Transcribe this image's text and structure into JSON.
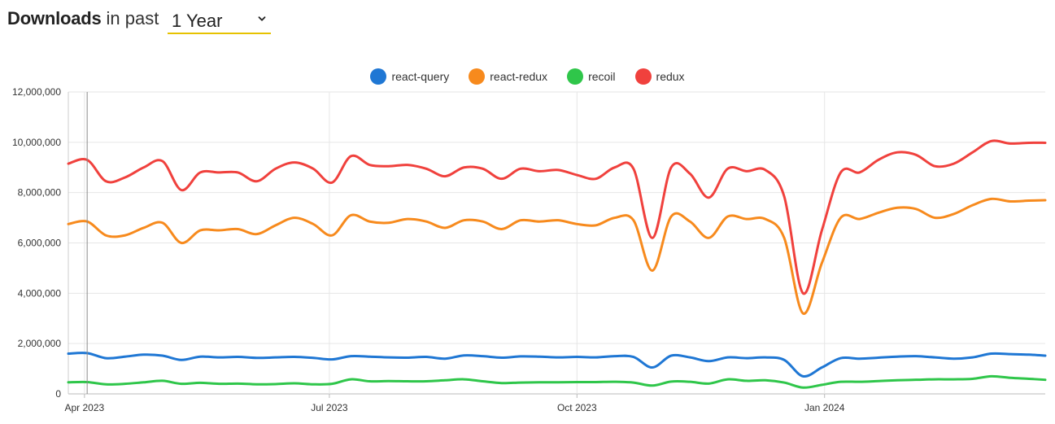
{
  "header": {
    "title": "Downloads",
    "subtitle": "in past",
    "period": "1 Year"
  },
  "chart_data": {
    "type": "line",
    "title": "",
    "xlabel": "",
    "ylabel": "",
    "ylim": [
      0,
      12000000
    ],
    "xlim": [
      "2023-03-26",
      "2024-03-23"
    ],
    "y_ticks": [
      0,
      2000000,
      4000000,
      6000000,
      8000000,
      10000000,
      12000000
    ],
    "y_tick_labels": [
      "0",
      "2,000,000",
      "4,000,000",
      "6,000,000",
      "8,000,000",
      "10,000,000",
      "12,000,000"
    ],
    "x_ticks": [
      {
        "date": "2023-04-01",
        "label": "Apr 2023"
      },
      {
        "date": "2023-07-01",
        "label": "Jul 2023"
      },
      {
        "date": "2023-10-01",
        "label": "Oct 2023"
      },
      {
        "date": "2024-01-01",
        "label": "Jan 2024"
      }
    ],
    "grid": true,
    "legend": "top-center",
    "x": [
      "2023-03-26",
      "2023-04-02",
      "2023-04-09",
      "2023-04-16",
      "2023-04-23",
      "2023-04-30",
      "2023-05-07",
      "2023-05-14",
      "2023-05-21",
      "2023-05-28",
      "2023-06-04",
      "2023-06-11",
      "2023-06-18",
      "2023-06-25",
      "2023-07-02",
      "2023-07-09",
      "2023-07-16",
      "2023-07-23",
      "2023-07-30",
      "2023-08-06",
      "2023-08-13",
      "2023-08-20",
      "2023-08-27",
      "2023-09-03",
      "2023-09-10",
      "2023-09-17",
      "2023-09-24",
      "2023-10-01",
      "2023-10-08",
      "2023-10-15",
      "2023-10-22",
      "2023-10-29",
      "2023-11-05",
      "2023-11-12",
      "2023-11-19",
      "2023-11-26",
      "2023-12-03",
      "2023-12-10",
      "2023-12-17",
      "2023-12-24",
      "2023-12-31",
      "2024-01-07",
      "2024-01-14",
      "2024-01-21",
      "2024-01-28",
      "2024-02-04",
      "2024-02-11",
      "2024-02-18",
      "2024-02-25",
      "2024-03-03",
      "2024-03-10",
      "2024-03-17",
      "2024-03-23"
    ],
    "series": [
      {
        "name": "react-query",
        "color": "#1f77d4",
        "values": [
          1600000,
          1620000,
          1420000,
          1480000,
          1560000,
          1520000,
          1350000,
          1480000,
          1450000,
          1470000,
          1430000,
          1450000,
          1470000,
          1430000,
          1370000,
          1500000,
          1480000,
          1450000,
          1440000,
          1470000,
          1400000,
          1530000,
          1500000,
          1440000,
          1490000,
          1480000,
          1450000,
          1470000,
          1450000,
          1500000,
          1470000,
          1050000,
          1520000,
          1450000,
          1300000,
          1450000,
          1420000,
          1450000,
          1350000,
          700000,
          1050000,
          1420000,
          1400000,
          1440000,
          1480000,
          1500000,
          1450000,
          1400000,
          1450000,
          1600000,
          1580000,
          1560000,
          1520000
        ]
      },
      {
        "name": "react-redux",
        "color": "#f78a1d",
        "values": [
          6750000,
          6850000,
          6300000,
          6300000,
          6600000,
          6800000,
          6000000,
          6500000,
          6500000,
          6550000,
          6350000,
          6700000,
          7000000,
          6750000,
          6300000,
          7100000,
          6850000,
          6800000,
          6950000,
          6850000,
          6600000,
          6900000,
          6850000,
          6550000,
          6900000,
          6850000,
          6900000,
          6750000,
          6700000,
          7000000,
          6900000,
          4900000,
          7050000,
          6850000,
          6200000,
          7050000,
          6950000,
          6950000,
          6200000,
          3200000,
          5200000,
          7000000,
          6950000,
          7200000,
          7400000,
          7350000,
          7000000,
          7150000,
          7500000,
          7750000,
          7650000,
          7680000,
          7700000
        ]
      },
      {
        "name": "recoil",
        "color": "#2fc64a",
        "values": [
          460000,
          470000,
          380000,
          400000,
          460000,
          520000,
          400000,
          440000,
          400000,
          410000,
          380000,
          390000,
          420000,
          380000,
          400000,
          580000,
          500000,
          510000,
          500000,
          500000,
          540000,
          580000,
          500000,
          430000,
          450000,
          460000,
          460000,
          470000,
          470000,
          480000,
          450000,
          330000,
          490000,
          480000,
          410000,
          580000,
          520000,
          540000,
          450000,
          250000,
          360000,
          480000,
          480000,
          510000,
          540000,
          560000,
          580000,
          580000,
          600000,
          700000,
          640000,
          600000,
          560000
        ]
      },
      {
        "name": "redux",
        "color": "#f0413d",
        "values": [
          9150000,
          9300000,
          8450000,
          8600000,
          9000000,
          9250000,
          8100000,
          8800000,
          8800000,
          8800000,
          8450000,
          8950000,
          9200000,
          8950000,
          8400000,
          9450000,
          9100000,
          9050000,
          9100000,
          8950000,
          8650000,
          9000000,
          8950000,
          8550000,
          8950000,
          8850000,
          8900000,
          8700000,
          8550000,
          9000000,
          8950000,
          6200000,
          9000000,
          8750000,
          7800000,
          8950000,
          8850000,
          8900000,
          7850000,
          4000000,
          6500000,
          8800000,
          8800000,
          9300000,
          9600000,
          9500000,
          9050000,
          9150000,
          9600000,
          10050000,
          9950000,
          9980000,
          9980000
        ]
      }
    ]
  }
}
